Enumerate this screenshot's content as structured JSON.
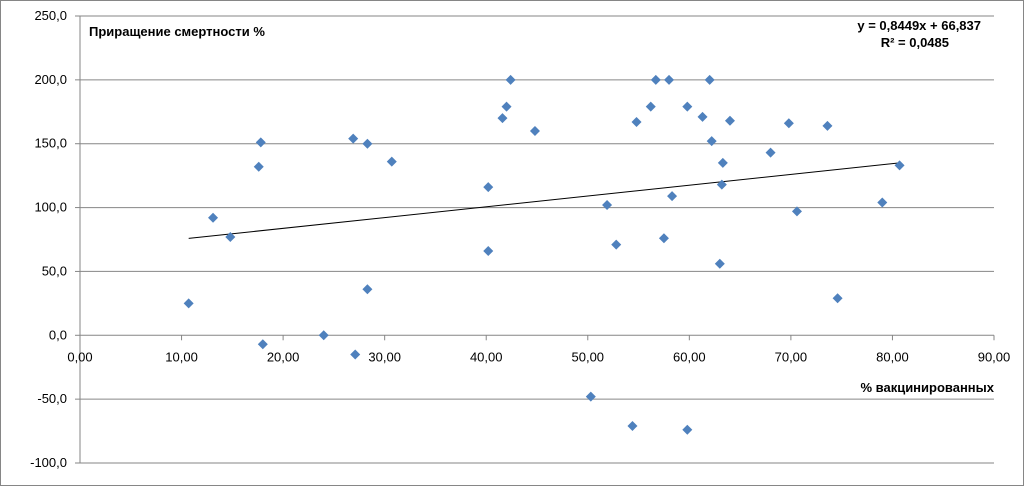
{
  "chart_data": {
    "type": "scatter",
    "title": "Приращение смертности %",
    "xlabel": "% вакцинированных",
    "ylabel": "Приращение смертности %",
    "xlim": [
      0,
      90
    ],
    "ylim": [
      -100,
      250
    ],
    "x_ticks": [
      "0,00",
      "10,00",
      "20,00",
      "30,00",
      "40,00",
      "50,00",
      "60,00",
      "70,00",
      "80,00",
      "90,00"
    ],
    "y_ticks": [
      "250,0",
      "200,0",
      "150,0",
      "100,0",
      "50,0",
      "0,0",
      "-50,0",
      "-100,0"
    ],
    "grid": "horizontal",
    "marker_color": "#4f81bd",
    "trendline": {
      "equation": "y = 0,8449x + 66,837",
      "r_squared": "R² = 0,0485",
      "slope": 0.8449,
      "intercept": 66.837,
      "x_range": [
        10.7,
        80.7
      ]
    },
    "points": [
      {
        "x": 10.7,
        "y": 25
      },
      {
        "x": 13.1,
        "y": 92
      },
      {
        "x": 14.8,
        "y": 77
      },
      {
        "x": 17.6,
        "y": 132
      },
      {
        "x": 17.8,
        "y": 151
      },
      {
        "x": 18.0,
        "y": -7
      },
      {
        "x": 24.0,
        "y": 0
      },
      {
        "x": 26.9,
        "y": 154
      },
      {
        "x": 27.1,
        "y": -15
      },
      {
        "x": 28.3,
        "y": 150
      },
      {
        "x": 28.3,
        "y": 36
      },
      {
        "x": 30.7,
        "y": 136
      },
      {
        "x": 40.2,
        "y": 116
      },
      {
        "x": 40.2,
        "y": 66
      },
      {
        "x": 41.6,
        "y": 170
      },
      {
        "x": 42.0,
        "y": 179
      },
      {
        "x": 42.4,
        "y": 200
      },
      {
        "x": 44.8,
        "y": 160
      },
      {
        "x": 50.3,
        "y": -48
      },
      {
        "x": 51.9,
        "y": 102
      },
      {
        "x": 52.8,
        "y": 71
      },
      {
        "x": 54.4,
        "y": -71
      },
      {
        "x": 54.8,
        "y": 167
      },
      {
        "x": 56.2,
        "y": 179
      },
      {
        "x": 56.7,
        "y": 200
      },
      {
        "x": 57.5,
        "y": 76
      },
      {
        "x": 58.0,
        "y": 200
      },
      {
        "x": 58.3,
        "y": 109
      },
      {
        "x": 59.8,
        "y": 179
      },
      {
        "x": 59.8,
        "y": -74
      },
      {
        "x": 61.3,
        "y": 171
      },
      {
        "x": 62.0,
        "y": 200
      },
      {
        "x": 62.2,
        "y": 152
      },
      {
        "x": 63.0,
        "y": 56
      },
      {
        "x": 63.2,
        "y": 118
      },
      {
        "x": 63.3,
        "y": 135
      },
      {
        "x": 64.0,
        "y": 168
      },
      {
        "x": 68.0,
        "y": 143
      },
      {
        "x": 69.8,
        "y": 166
      },
      {
        "x": 70.6,
        "y": 97
      },
      {
        "x": 73.6,
        "y": 164
      },
      {
        "x": 74.6,
        "y": 29
      },
      {
        "x": 79.0,
        "y": 104
      },
      {
        "x": 80.7,
        "y": 133
      }
    ]
  }
}
